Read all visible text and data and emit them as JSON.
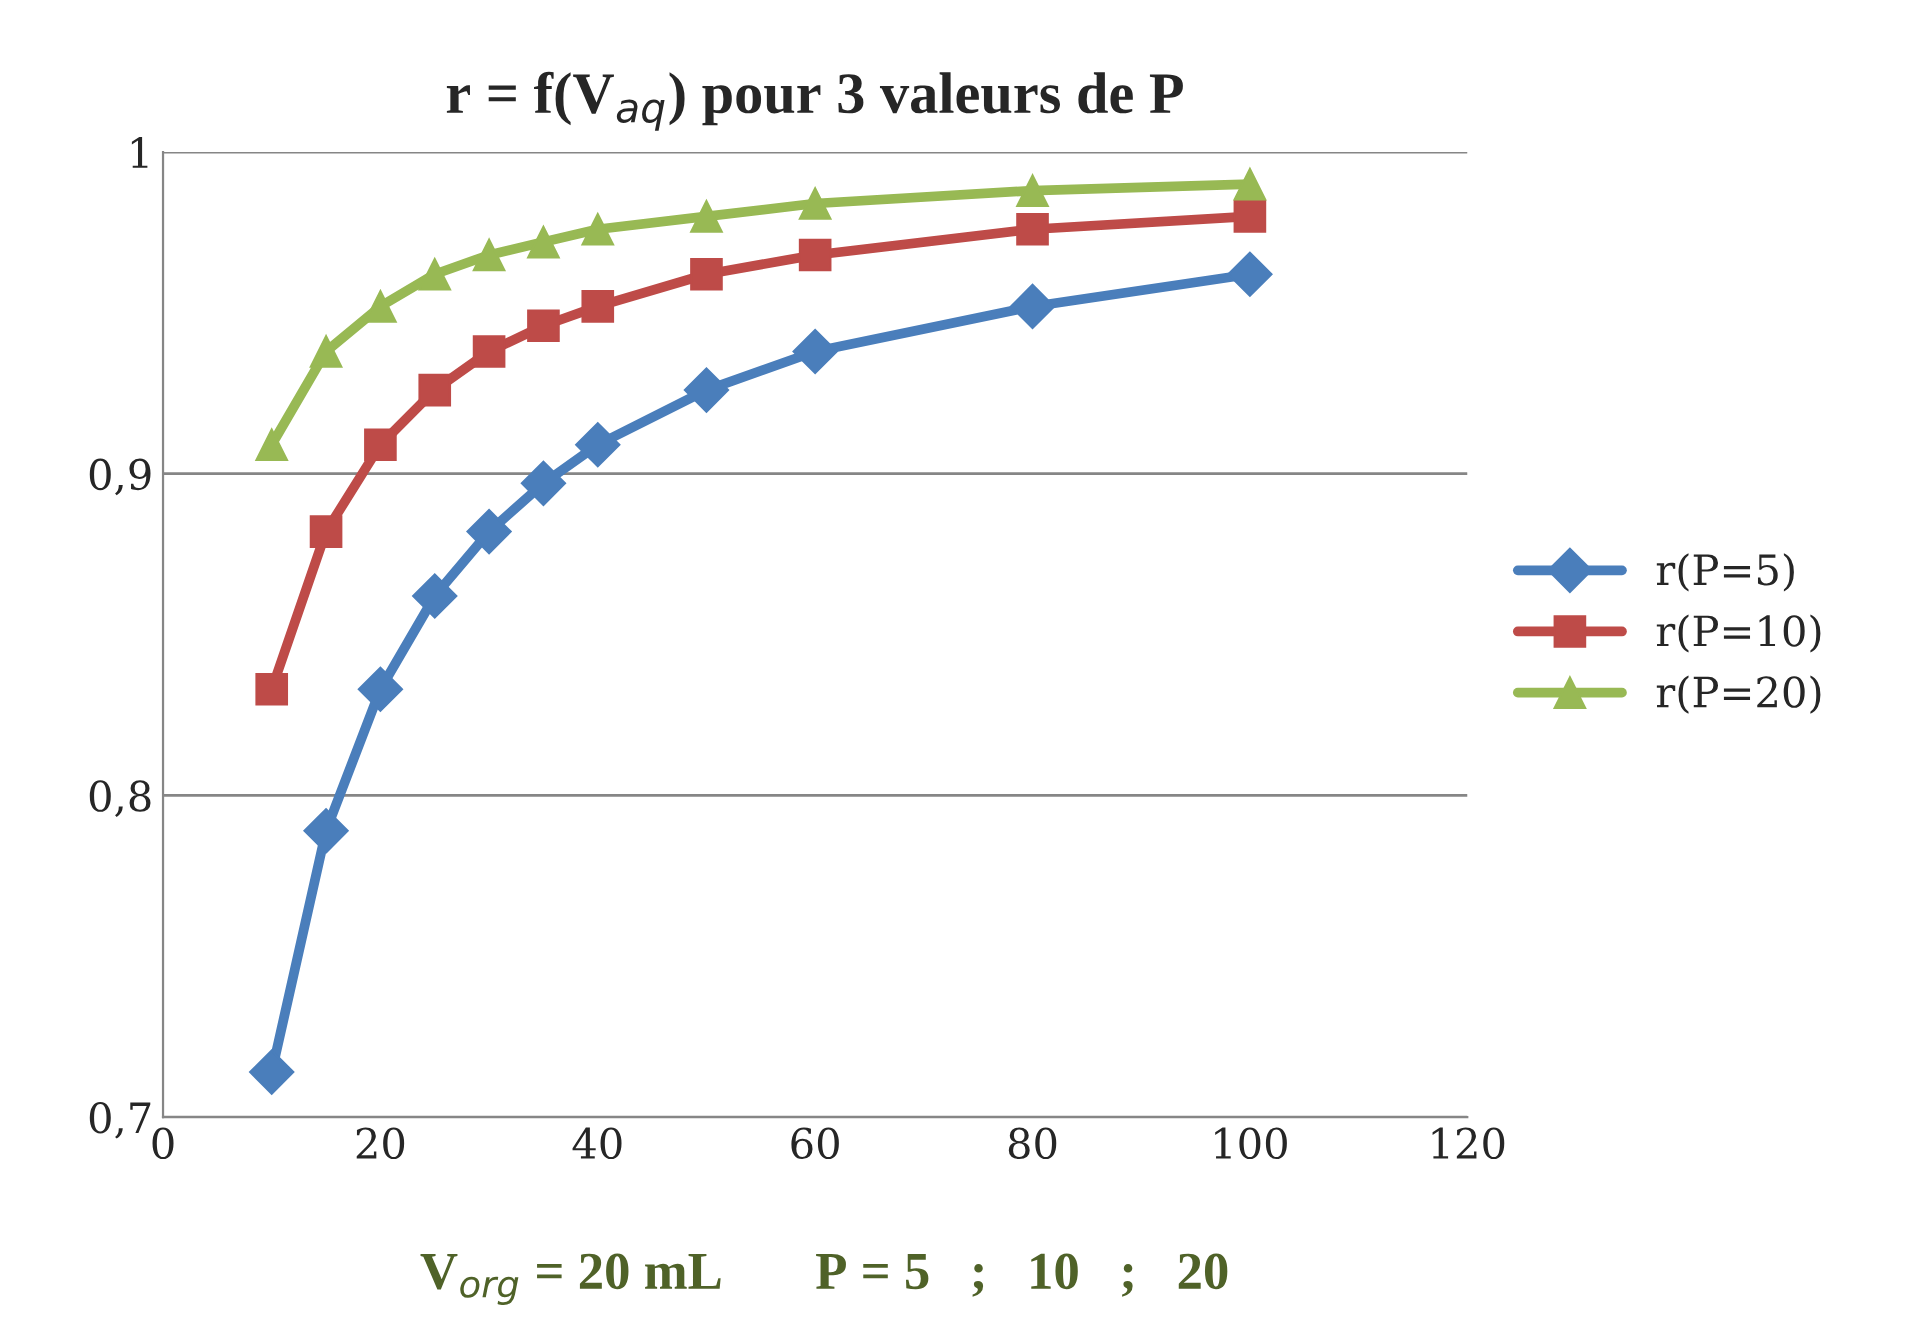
{
  "chart_data": {
    "type": "line",
    "title": "r = f(V$_{aq}$) pour 3 valeurs de P",
    "x": [
      10,
      15,
      20,
      25,
      30,
      35,
      40,
      50,
      60,
      80,
      100
    ],
    "series": [
      {
        "name": "r(P=5)",
        "color": "#4a7ebb",
        "marker": "diamond",
        "values": [
          0.714,
          0.789,
          0.833,
          0.862,
          0.882,
          0.897,
          0.909,
          0.926,
          0.938,
          0.952,
          0.962
        ]
      },
      {
        "name": "r(P=10)",
        "color": "#be4b48",
        "marker": "square",
        "values": [
          0.833,
          0.882,
          0.909,
          0.926,
          0.938,
          0.946,
          0.952,
          0.962,
          0.968,
          0.976,
          0.98
        ]
      },
      {
        "name": "r(P=20)",
        "color": "#98b954",
        "marker": "triangle",
        "values": [
          0.909,
          0.938,
          0.952,
          0.962,
          0.968,
          0.972,
          0.976,
          0.98,
          0.984,
          0.988,
          0.99
        ]
      }
    ],
    "xlim": [
      0,
      120
    ],
    "xticks": [
      0,
      20,
      40,
      60,
      80,
      100,
      120
    ],
    "ylim": [
      0.7,
      1
    ],
    "yticks": [
      {
        "value": 0.7,
        "label": "0,7"
      },
      {
        "value": 0.8,
        "label": "0,8"
      },
      {
        "value": 0.9,
        "label": "0,9"
      },
      1
    ],
    "grid": "y",
    "legend": "right",
    "line_style": "solid",
    "annotations": [
      "V$_{org}$ = 20 mL       P = 5   ;   10   ;   20"
    ]
  }
}
